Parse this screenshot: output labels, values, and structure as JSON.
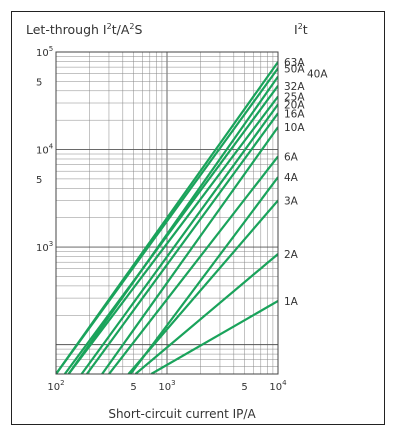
{
  "chart_data": {
    "type": "line",
    "title": "Let-through I²t/A²S",
    "title_main": "Let-through I",
    "title_sup1": "2",
    "title_mid": "t/A",
    "title_sup2": "2",
    "title_end": "S",
    "corner_label": "I²t",
    "corner_main": "I",
    "corner_sup": "2",
    "corner_end": "t",
    "xlabel": "Short-circuit current IP/A",
    "x_scale": "log",
    "y_scale": "log",
    "xlim": [
      100,
      10000
    ],
    "ylim": [
      50,
      100000
    ],
    "grid": true,
    "line_color": "#1aa35b",
    "x_ticks": [
      {
        "value": 100,
        "base": "10",
        "exp": "2"
      },
      {
        "value": 500,
        "base": "5",
        "exp": ""
      },
      {
        "value": 1000,
        "base": "10",
        "exp": "3"
      },
      {
        "value": 5000,
        "base": "5",
        "exp": ""
      },
      {
        "value": 10000,
        "base": "10",
        "exp": "4"
      }
    ],
    "y_ticks": [
      {
        "value": 100000,
        "base": "10",
        "exp": "5"
      },
      {
        "value": 50000,
        "base": "5",
        "exp": ""
      },
      {
        "value": 10000,
        "base": "10",
        "exp": "4"
      },
      {
        "value": 5000,
        "base": "5",
        "exp": ""
      },
      {
        "value": 1000,
        "base": "10",
        "exp": "3"
      }
    ],
    "series": [
      {
        "name": "63A",
        "x": [
          100,
          10000
        ],
        "y": [
          50,
          79000
        ]
      },
      {
        "name": "50A",
        "x": [
          100,
          10000
        ],
        "y": [
          50,
          68000
        ]
      },
      {
        "name": "40A",
        "x": [
          130,
          10000
        ],
        "y": [
          50,
          56000
        ]
      },
      {
        "name": "32A",
        "x": [
          120,
          10000
        ],
        "y": [
          50,
          45000
        ]
      },
      {
        "name": "25A",
        "x": [
          130,
          10000
        ],
        "y": [
          50,
          35000
        ]
      },
      {
        "name": "20A",
        "x": [
          170,
          10000
        ],
        "y": [
          50,
          29000
        ]
      },
      {
        "name": "16A",
        "x": [
          190,
          10000
        ],
        "y": [
          50,
          23500
        ]
      },
      {
        "name": "10A",
        "x": [
          260,
          10000
        ],
        "y": [
          50,
          17000
        ]
      },
      {
        "name": "6A",
        "x": [
          300,
          10000
        ],
        "y": [
          50,
          8500
        ]
      },
      {
        "name": "4A",
        "x": [
          470,
          10000
        ],
        "y": [
          50,
          5200
        ]
      },
      {
        "name": "3A",
        "x": [
          450,
          10000
        ],
        "y": [
          50,
          3000
        ]
      },
      {
        "name": "2A",
        "x": [
          520,
          10000
        ],
        "y": [
          50,
          850
        ]
      },
      {
        "name": "1A",
        "x": [
          720,
          10000
        ],
        "y": [
          50,
          280
        ]
      }
    ]
  }
}
